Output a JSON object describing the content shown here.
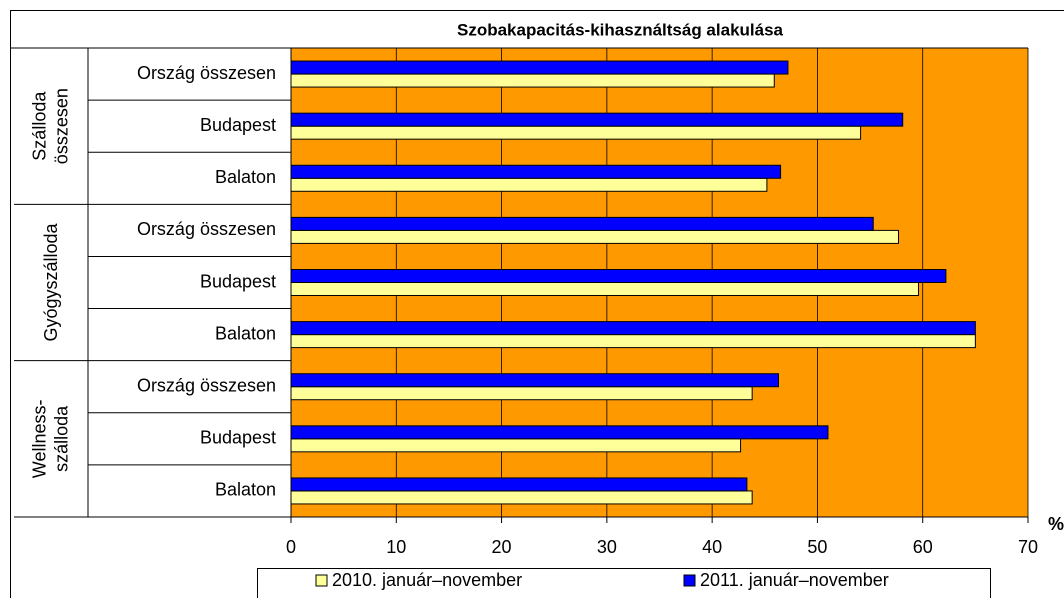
{
  "chart_data": {
    "type": "bar",
    "orientation": "horizontal",
    "title": "Szobakapacitás-kihasználtság alakulása",
    "categories": [
      "Ország összesen",
      "Budapest",
      "Balaton",
      "Ország összesen",
      "Budapest",
      "Balaton",
      "Ország összesen",
      "Budapest",
      "Balaton"
    ],
    "groups": [
      [
        "Szálloda",
        "összesen"
      ],
      [
        "Gyógyszálloda"
      ],
      [
        "Wellness-",
        "szálloda"
      ]
    ],
    "series": [
      {
        "name": "2010. január–november",
        "color": "#ffff99",
        "values": [
          45.9,
          54.1,
          45.2,
          57.7,
          59.6,
          65.0,
          43.8,
          42.7,
          43.8
        ]
      },
      {
        "name": "2011. január–november",
        "color": "#0000ff",
        "values": [
          47.2,
          58.1,
          46.5,
          55.3,
          62.2,
          65.0,
          46.3,
          51.0,
          43.3
        ]
      }
    ],
    "xlim": [
      0,
      70
    ],
    "xticks": [
      0,
      10,
      20,
      30,
      40,
      50,
      60,
      70
    ],
    "x_unit": "%",
    "plot_background": "#ff9900",
    "grid": true,
    "legend": "bottom"
  }
}
